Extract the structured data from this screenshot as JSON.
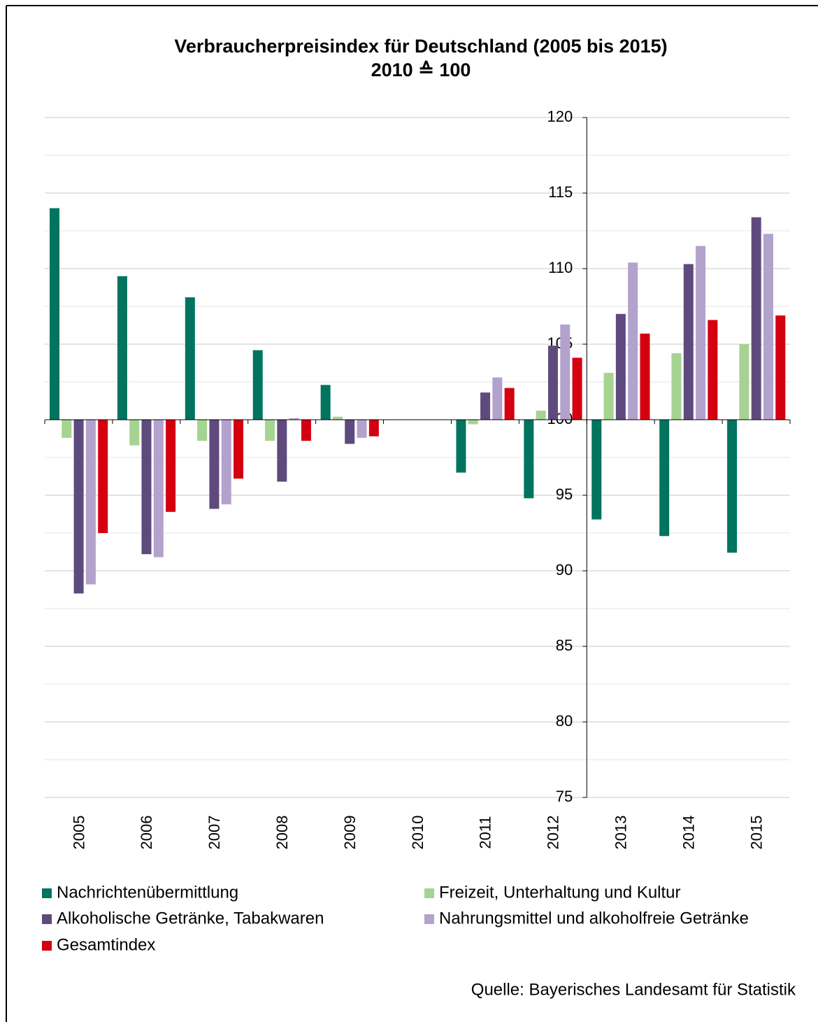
{
  "chart_data": {
    "type": "bar",
    "title": "Verbraucherpreisindex für Deutschland (2005 bis 2015)",
    "subtitle": "2010 ≙ 100",
    "categories": [
      "2005",
      "2006",
      "2007",
      "2008",
      "2009",
      "2010",
      "2011",
      "2012",
      "2013",
      "2014",
      "2015"
    ],
    "base": 100,
    "series": [
      {
        "name": "Nachrichtenübermittlung",
        "color": "#00745f",
        "values": [
          114.0,
          109.5,
          108.1,
          104.6,
          102.3,
          100,
          96.5,
          94.8,
          93.4,
          92.3,
          91.2
        ]
      },
      {
        "name": "Freizeit, Unterhaltung und Kultur",
        "color": "#a6d392",
        "values": [
          98.8,
          98.3,
          98.6,
          98.6,
          100.2,
          100,
          99.7,
          100.6,
          103.1,
          104.4,
          105.0
        ]
      },
      {
        "name": "Alkoholische Getränke, Tabakwaren",
        "color": "#5f4a7e",
        "values": [
          88.5,
          91.1,
          94.1,
          95.9,
          98.4,
          100,
          101.8,
          104.9,
          107.0,
          110.3,
          113.4
        ]
      },
      {
        "name": "Nahrungsmittel und alkoholfreie Getränke",
        "color": "#b3a2cc",
        "values": [
          89.1,
          90.9,
          94.4,
          100.1,
          98.8,
          100,
          102.8,
          106.3,
          110.4,
          111.5,
          112.3
        ]
      },
      {
        "name": "Gesamtindex",
        "color": "#d40010",
        "values": [
          92.5,
          93.9,
          96.1,
          98.6,
          98.9,
          100,
          102.1,
          104.1,
          105.7,
          106.6,
          106.9
        ]
      }
    ],
    "ylim": [
      75,
      120
    ],
    "yticks": [
      75,
      80,
      85,
      90,
      95,
      100,
      105,
      110,
      115,
      120
    ],
    "yminorticks": [
      77.5,
      82.5,
      87.5,
      92.5,
      97.5,
      102.5,
      107.5,
      112.5,
      117.5
    ],
    "grid": true,
    "source": "Quelle: Bayerisches Landesamt für Statistik"
  }
}
